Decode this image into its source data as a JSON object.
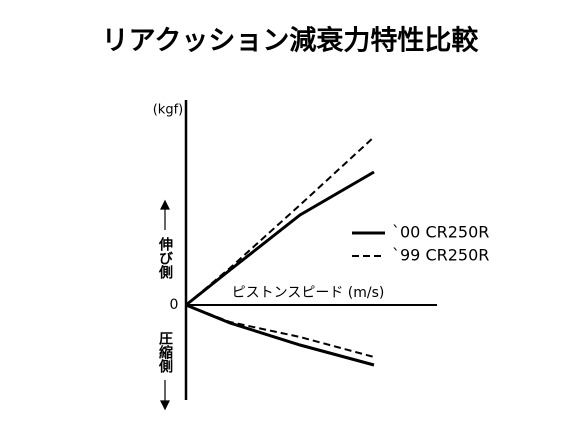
{
  "chart_data": {
    "type": "line",
    "title": "リアクッション減衰力特性比較",
    "y_label": "(kgf)",
    "x_label": "ピストンスピード (m/s)",
    "rebound_label": "伸び側",
    "compression_label": "圧縮側",
    "x": [
      0,
      44,
      114,
      188
    ],
    "xlim": [
      0,
      251
    ],
    "ylim": [
      -95,
      205
    ],
    "yticks": [
      0
    ],
    "series": [
      {
        "name": "`00 CR250R",
        "color": "#000000",
        "dash": false,
        "rebound": [
          0,
          35,
          90,
          133
        ],
        "compression": [
          0,
          -18,
          -40,
          -60
        ]
      },
      {
        "name": "`99 CR250R",
        "color": "#000000",
        "dash": true,
        "rebound": [
          0,
          37,
          100,
          168
        ],
        "compression": [
          0,
          -17,
          -32,
          -52
        ]
      }
    ]
  }
}
